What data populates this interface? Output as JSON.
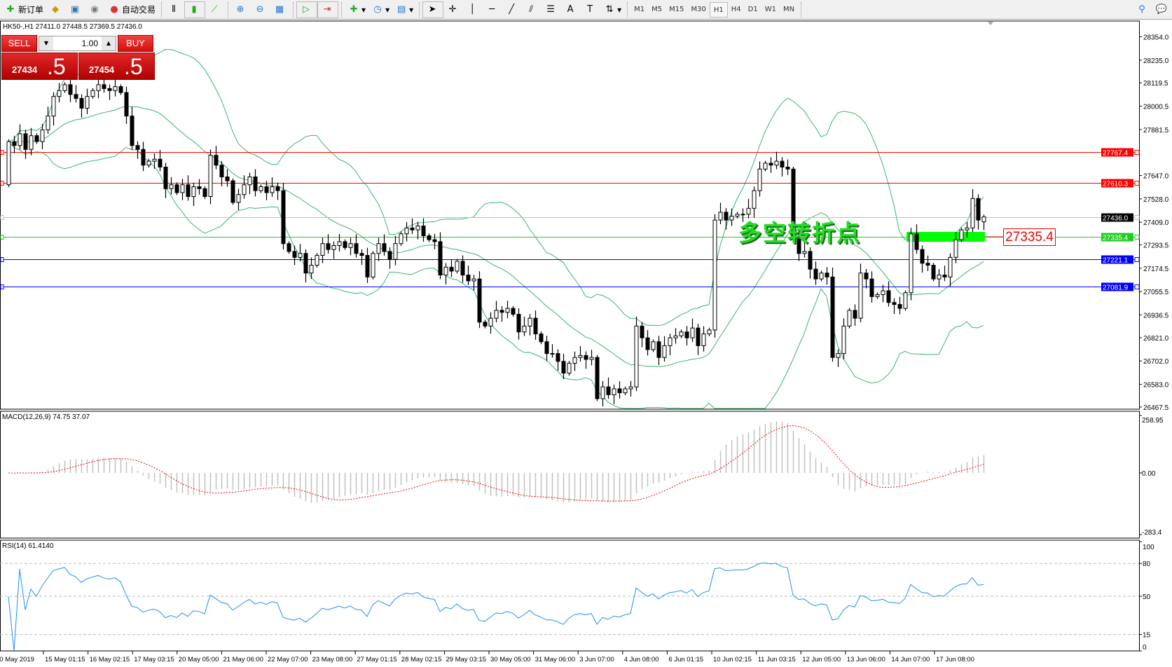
{
  "toolbar": {
    "new_order": "新订单",
    "auto_trading": "自动交易",
    "timeframes": [
      "M1",
      "M5",
      "M15",
      "M30",
      "H1",
      "H4",
      "D1",
      "W1",
      "MN"
    ],
    "active_timeframe": "H1"
  },
  "symbol_info": "HK50-,H1  27411.0 27448.5 27369.5 27436.0",
  "trade_panel": {
    "sell_label": "SELL",
    "buy_label": "BUY",
    "lot": "1.00",
    "sell_price_main": "27434",
    "sell_price_frac": ".5",
    "buy_price_main": "27454",
    "buy_price_frac": ".5"
  },
  "annotation_text": "多空转折点",
  "annotation_price": "27335.4",
  "macd_label": "MACD(12,26,9) 74.75 37.07",
  "rsi_label": "RSI(14) 61.4140",
  "colors": {
    "bull_fill": "#ffffff",
    "bear_fill": "#000000",
    "bands": "#3cb371",
    "macd_hist": "#c0c0c0",
    "macd_signal": "#ff0000",
    "rsi": "#1e90ff",
    "resistance": "#ff0000",
    "pivot": "#22cc22",
    "support": "#0000ff",
    "bid": "#c0c0c0"
  },
  "chart_data": {
    "type": "candlestick",
    "symbol": "HK50-",
    "timeframe": "H1",
    "ylim": [
      26467.5,
      28354.0
    ],
    "price_ticks": [
      "28354.0",
      "28235.0",
      "28119.5",
      "28000.5",
      "27881.5",
      "27647.0",
      "27528.0",
      "27409.0",
      "27293.5",
      "27174.5",
      "27055.5",
      "26936.5",
      "26821.0",
      "26702.0",
      "26583.0",
      "26467.5"
    ],
    "date_labels": [
      "10 May 2019",
      "15 May 01:15",
      "16 May 02:15",
      "17 May 03:15",
      "20 May 05:00",
      "21 May 06:00",
      "22 May 07:00",
      "23 May 08:00",
      "27 May 01:15",
      "28 May 02:15",
      "29 May 03:15",
      "30 May 05:00",
      "31 May 06:00",
      "3 Jun 07:00",
      "4 Jun 08:00",
      "6 Jun 01:15",
      "10 Jun 02:15",
      "11 Jun 03:15",
      "12 Jun 05:00",
      "13 Jun 06:00",
      "14 Jun 07:00",
      "17 Jun 08:00"
    ],
    "first_open": 27600,
    "closes": [
      27820,
      27800,
      27860,
      27780,
      27850,
      27820,
      27880,
      27950,
      28050,
      28080,
      28110,
      28060,
      28040,
      27990,
      28050,
      28080,
      28110,
      28090,
      28080,
      28100,
      28070,
      27950,
      27800,
      27780,
      27700,
      27720,
      27730,
      27690,
      27580,
      27600,
      27560,
      27600,
      27540,
      27590,
      27580,
      27540,
      27750,
      27700,
      27640,
      27620,
      27510,
      27550,
      27600,
      27640,
      27570,
      27590,
      27560,
      27590,
      27570,
      27300,
      27260,
      27230,
      27250,
      27150,
      27190,
      27240,
      27300,
      27270,
      27290,
      27310,
      27280,
      27300,
      27250,
      27240,
      27130,
      27250,
      27300,
      27260,
      27220,
      27300,
      27350,
      27380,
      27370,
      27390,
      27340,
      27320,
      27310,
      27140,
      27180,
      27160,
      27210,
      27140,
      27110,
      27120,
      26900,
      26880,
      26920,
      26960,
      26950,
      26970,
      26940,
      26850,
      26880,
      26920,
      26840,
      26800,
      26740,
      26740,
      26700,
      26640,
      26690,
      26720,
      26730,
      26710,
      26720,
      26510,
      26570,
      26530,
      26560,
      26540,
      26560,
      26570,
      26880,
      26820,
      26760,
      26800,
      26720,
      26780,
      26820,
      26830,
      26850,
      26820,
      26870,
      26780,
      26840,
      26860,
      27420,
      27460,
      27420,
      27440,
      27450,
      27450,
      27480,
      27570,
      27680,
      27710,
      27700,
      27720,
      27690,
      27680,
      27330,
      27250,
      27260,
      27170,
      27120,
      27150,
      27130,
      26720,
      26740,
      26880,
      26960,
      26920,
      27150,
      27120,
      27030,
      27040,
      27060,
      27000,
      26990,
      26970,
      27050,
      27350,
      27270,
      27200,
      27190,
      27120,
      27140,
      27130,
      27230,
      27320,
      27370,
      27380,
      27530,
      27420,
      27436
    ],
    "last_candle": {
      "open": 27411.0,
      "high": 27448.5,
      "low": 27369.5,
      "close": 27436.0
    },
    "horizontal_lines": [
      {
        "price": "27767.4",
        "color": "#ff0000"
      },
      {
        "price": "27610.3",
        "color": "#ff0000"
      },
      {
        "price": "27436.0",
        "color": "#000000",
        "line": "#c0c0c0"
      },
      {
        "price": "27335.4",
        "color": "#22cc22"
      },
      {
        "price": "27221.1",
        "color": "#0000ff"
      },
      {
        "price": "27081.9",
        "color": "#0000ff"
      }
    ],
    "indicators": {
      "bollinger": {
        "period": 20,
        "deviation": 2
      },
      "macd": {
        "fast": 12,
        "slow": 26,
        "signal": 9,
        "main": 74.75,
        "signal_value": 37.07,
        "ylim": [
          -283.4,
          258.95
        ],
        "ticks": [
          "258.95",
          "0.00",
          "-283.4"
        ]
      },
      "rsi": {
        "period": 14,
        "value": 61.414,
        "levels": [
          "80",
          "50",
          "15"
        ],
        "ticks": [
          "100",
          "80",
          "50",
          "15",
          "0"
        ]
      }
    }
  }
}
